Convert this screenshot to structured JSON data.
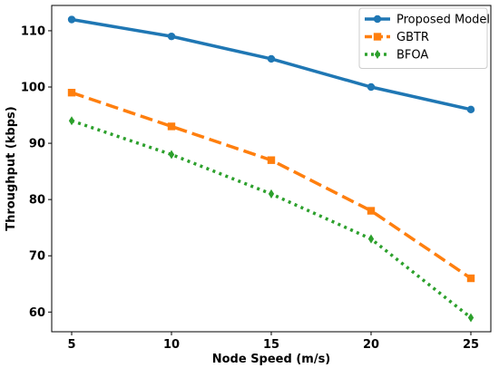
{
  "chart_data": {
    "type": "line",
    "title": "",
    "xlabel": "Node Speed (m/s)",
    "ylabel": "Throughput (kbps)",
    "x": [
      5,
      10,
      15,
      20,
      25
    ],
    "xlim": [
      4,
      26
    ],
    "ylim": [
      56.5,
      114.5
    ],
    "xticks": [
      5,
      10,
      15,
      20,
      25
    ],
    "yticks": [
      60,
      70,
      80,
      90,
      100,
      110
    ],
    "grid": false,
    "legend_position": "top-right",
    "series": [
      {
        "name": "Proposed Model",
        "values": [
          112,
          109,
          105,
          100,
          96
        ],
        "color": "#1f77b4",
        "line_style": "solid",
        "marker": "circle"
      },
      {
        "name": "GBTR",
        "values": [
          99,
          93,
          87,
          78,
          66
        ],
        "color": "#ff7f0e",
        "line_style": "dashed",
        "marker": "square"
      },
      {
        "name": "BFOA",
        "values": [
          94,
          88,
          81,
          73,
          59
        ],
        "color": "#2ca02c",
        "line_style": "dotted",
        "marker": "diamond"
      }
    ]
  }
}
